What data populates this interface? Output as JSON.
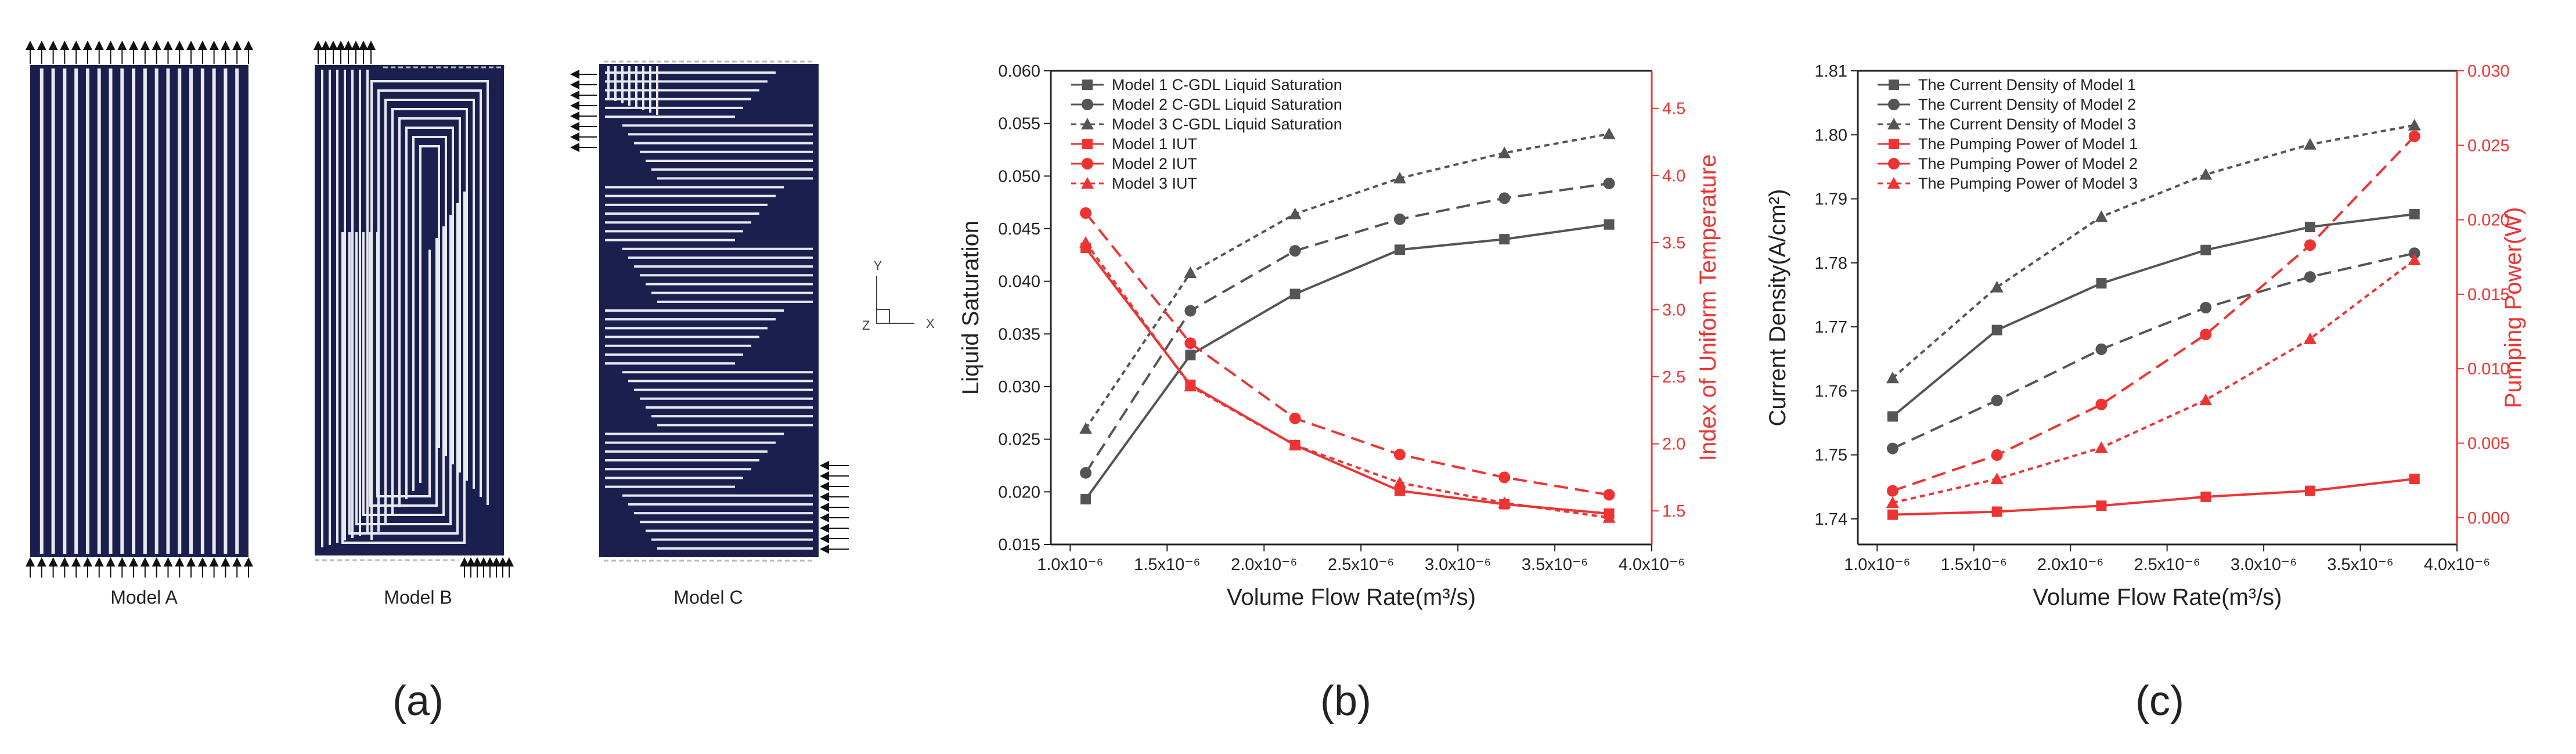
{
  "panel_a": {
    "model_labels": [
      "Model A",
      "Model B",
      "Model C"
    ],
    "axis_labels": {
      "y": "Y",
      "x": "X",
      "z": "Z"
    },
    "channel_color": "#1a1f4d",
    "rib_color": "#e8e8ef",
    "panel_label": "(a)"
  },
  "panel_b": {
    "panel_label": "(b)"
  },
  "panel_c": {
    "panel_label": "(c)"
  },
  "chart_data": [
    {
      "id": "b",
      "type": "line",
      "xlabel": "Volume Flow Rate(m³/s)",
      "ylabel_left": "Liquid Saturation",
      "ylabel_right": "Index of Uniform Temperature",
      "x_ticks": [
        "1.0x10⁻⁶",
        "1.5x10⁻⁶",
        "2.0x10⁻⁶",
        "2.5x10⁻⁶",
        "3.0x10⁻⁶",
        "3.5x10⁻⁶",
        "4.0x10⁻⁶"
      ],
      "xlim": [
        0.9,
        4.0
      ],
      "ylim_left": [
        0.015,
        0.06
      ],
      "yticks_left": [
        "0.015",
        "0.020",
        "0.025",
        "0.030",
        "0.035",
        "0.040",
        "0.045",
        "0.050",
        "0.055",
        "0.060"
      ],
      "ylim_right": [
        1.25,
        4.78
      ],
      "yticks_right": [
        "1.5",
        "2.0",
        "2.5",
        "3.0",
        "3.5",
        "4.0",
        "4.5"
      ],
      "x": [
        1.08,
        1.62,
        2.16,
        2.7,
        3.24,
        3.78
      ],
      "series": [
        {
          "name": "Model 1 C-GDL Liquid Saturation",
          "axis": "left",
          "color": "#555555",
          "dash": "solid",
          "marker": "square",
          "values": [
            0.0193,
            0.033,
            0.0388,
            0.043,
            0.044,
            0.0454
          ]
        },
        {
          "name": "Model 2 C-GDL Liquid Saturation",
          "axis": "left",
          "color": "#555555",
          "dash": "dashed",
          "marker": "circle",
          "values": [
            0.0218,
            0.0372,
            0.0429,
            0.0459,
            0.0479,
            0.0493
          ]
        },
        {
          "name": "Model 3 C-GDL Liquid Saturation",
          "axis": "left",
          "color": "#555555",
          "dash": "dotted",
          "marker": "triangle",
          "values": [
            0.026,
            0.0408,
            0.0464,
            0.0498,
            0.0522,
            0.054
          ]
        },
        {
          "name": "Model 1 IUT",
          "axis": "right",
          "color": "#ee3333",
          "dash": "solid",
          "marker": "square",
          "values": [
            3.46,
            2.44,
            1.99,
            1.65,
            1.55,
            1.48
          ]
        },
        {
          "name": "Model 2 IUT",
          "axis": "right",
          "color": "#ee3333",
          "dash": "dashed",
          "marker": "circle",
          "values": [
            3.72,
            2.75,
            2.19,
            1.92,
            1.75,
            1.62
          ]
        },
        {
          "name": "Model 3 IUT",
          "axis": "right",
          "color": "#ee3333",
          "dash": "dotted",
          "marker": "triangle",
          "values": [
            3.5,
            2.43,
            1.99,
            1.71,
            1.56,
            1.45
          ]
        }
      ]
    },
    {
      "id": "c",
      "type": "line",
      "xlabel": "Volume Flow Rate(m³/s)",
      "ylabel_left": "Current Density(A/cm²)",
      "ylabel_right": "Pumping Power(W)",
      "x_ticks": [
        "1.0x10⁻⁶",
        "1.5x10⁻⁶",
        "2.0x10⁻⁶",
        "2.5x10⁻⁶",
        "3.0x10⁻⁶",
        "3.5x10⁻⁶",
        "4.0x10⁻⁶"
      ],
      "xlim": [
        0.9,
        4.0
      ],
      "ylim_left": [
        1.736,
        1.81
      ],
      "yticks_left": [
        "1.74",
        "1.75",
        "1.76",
        "1.77",
        "1.78",
        "1.79",
        "1.80",
        "1.81"
      ],
      "ylim_right": [
        -0.0018,
        0.03
      ],
      "yticks_right": [
        "0.000",
        "0.005",
        "0.010",
        "0.015",
        "0.020",
        "0.025",
        "0.030"
      ],
      "x": [
        1.08,
        1.62,
        2.16,
        2.7,
        3.24,
        3.78
      ],
      "series": [
        {
          "name": "The Current Density of Model 1",
          "axis": "left",
          "color": "#555555",
          "dash": "solid",
          "marker": "square",
          "values": [
            1.756,
            1.7695,
            1.7768,
            1.782,
            1.7856,
            1.7876
          ]
        },
        {
          "name": "The Current Density of Model 2",
          "axis": "left",
          "color": "#555555",
          "dash": "dashed",
          "marker": "circle",
          "values": [
            1.751,
            1.7585,
            1.7665,
            1.773,
            1.7778,
            1.7815
          ]
        },
        {
          "name": "The Current Density of Model 3",
          "axis": "left",
          "color": "#555555",
          "dash": "dotted",
          "marker": "triangle",
          "values": [
            1.762,
            1.7762,
            1.7872,
            1.7938,
            1.7985,
            1.8015
          ]
        },
        {
          "name": "The Pumping Power of Model 1",
          "axis": "right",
          "color": "#ee3333",
          "dash": "solid",
          "marker": "square",
          "values": [
            0.0002,
            0.0004,
            0.0008,
            0.0014,
            0.0018,
            0.0026
          ]
        },
        {
          "name": "The Pumping Power of Model 2",
          "axis": "right",
          "color": "#ee3333",
          "dash": "dashed",
          "marker": "circle",
          "values": [
            0.0018,
            0.0042,
            0.0076,
            0.0123,
            0.0183,
            0.0256
          ]
        },
        {
          "name": "The Pumping Power of Model 3",
          "axis": "right",
          "color": "#ee3333",
          "dash": "dotted",
          "marker": "triangle",
          "values": [
            0.001,
            0.0026,
            0.0047,
            0.0079,
            0.012,
            0.0173
          ]
        }
      ]
    }
  ]
}
